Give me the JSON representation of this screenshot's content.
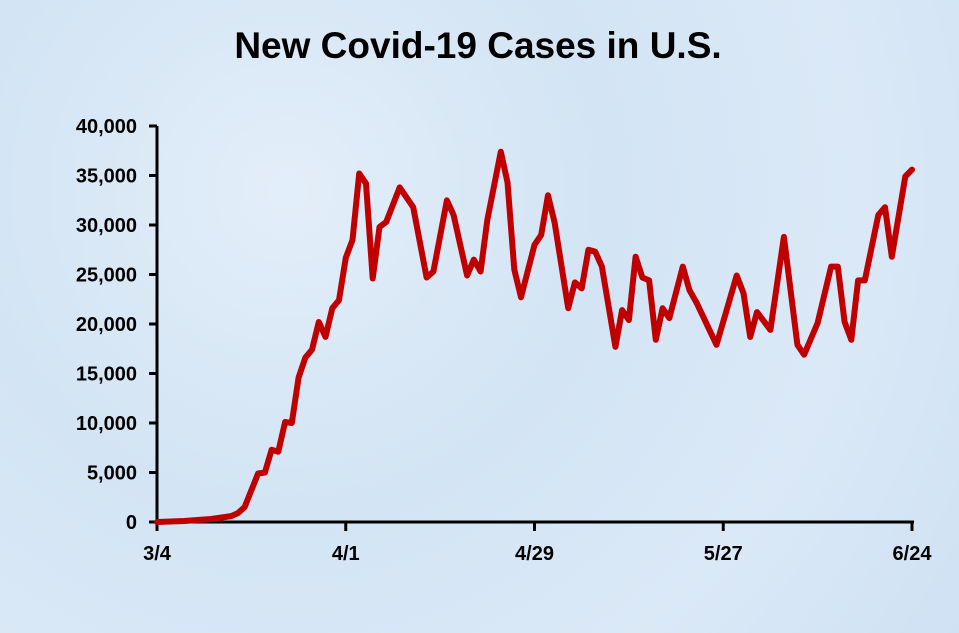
{
  "chart_data": {
    "type": "line",
    "title": "New Covid-19 Cases in U.S.",
    "xlabel": "",
    "ylabel": "",
    "ylim": [
      0,
      40000
    ],
    "y_ticks": [
      "0",
      "5,000",
      "10,000",
      "15,000",
      "20,000",
      "25,000",
      "30,000",
      "35,000",
      "40,000"
    ],
    "y_tick_values": [
      0,
      5000,
      10000,
      15000,
      20000,
      25000,
      30000,
      35000,
      40000
    ],
    "x_ticks": [
      "3/4",
      "4/1",
      "4/29",
      "5/27",
      "6/24"
    ],
    "grid": false,
    "line_color": "#c00000",
    "background_color": "#d6e6f5",
    "series": [
      {
        "x": [
          "3/4",
          "3/8",
          "3/12",
          "3/15",
          "3/16",
          "3/17",
          "3/19",
          "3/20",
          "3/21",
          "3/22",
          "3/23",
          "3/24",
          "3/25",
          "3/26",
          "3/27",
          "3/28",
          "3/29",
          "3/30",
          "3/31",
          "4/1",
          "4/2",
          "4/3",
          "4/4",
          "4/5",
          "4/6",
          "4/7",
          "4/9",
          "4/11",
          "4/13",
          "4/14",
          "4/16",
          "4/17",
          "4/19",
          "4/20",
          "4/21",
          "4/22",
          "4/24",
          "4/25",
          "4/26",
          "4/27",
          "4/29",
          "4/30",
          "5/1",
          "5/2",
          "5/4",
          "5/5",
          "5/6",
          "5/7",
          "5/8",
          "5/9",
          "5/11",
          "5/12",
          "5/13",
          "5/14",
          "5/15",
          "5/16",
          "5/17",
          "5/18",
          "5/19",
          "5/21",
          "5/22",
          "5/23",
          "5/26",
          "5/29",
          "5/30",
          "5/31",
          "6/1",
          "6/3",
          "6/5",
          "6/7",
          "6/8",
          "6/10",
          "6/12",
          "6/13",
          "6/14",
          "6/15",
          "6/16",
          "6/17",
          "6/19",
          "6/20",
          "6/21",
          "6/23",
          "6/24"
        ],
        "values": [
          0,
          100,
          300,
          600,
          900,
          1500,
          4900,
          5000,
          7300,
          7100,
          10100,
          10000,
          14600,
          16600,
          17400,
          20200,
          18700,
          21600,
          22400,
          26700,
          28500,
          35200,
          34200,
          24600,
          29800,
          30300,
          33800,
          31800,
          24700,
          25300,
          32500,
          31000,
          24900,
          26500,
          25300,
          30500,
          37400,
          34300,
          25500,
          22700,
          28000,
          29000,
          33000,
          30200,
          21600,
          24200,
          23600,
          27500,
          27300,
          25800,
          17700,
          21400,
          20400,
          26800,
          24700,
          24400,
          18400,
          21600,
          20600,
          25800,
          23400,
          22200,
          17900,
          24900,
          23100,
          18700,
          21200,
          19400,
          28800,
          17900,
          16900,
          20100,
          25800,
          25800,
          20200,
          18400,
          24400,
          24400,
          31000,
          31800,
          26800,
          34900,
          35600
        ]
      }
    ]
  }
}
